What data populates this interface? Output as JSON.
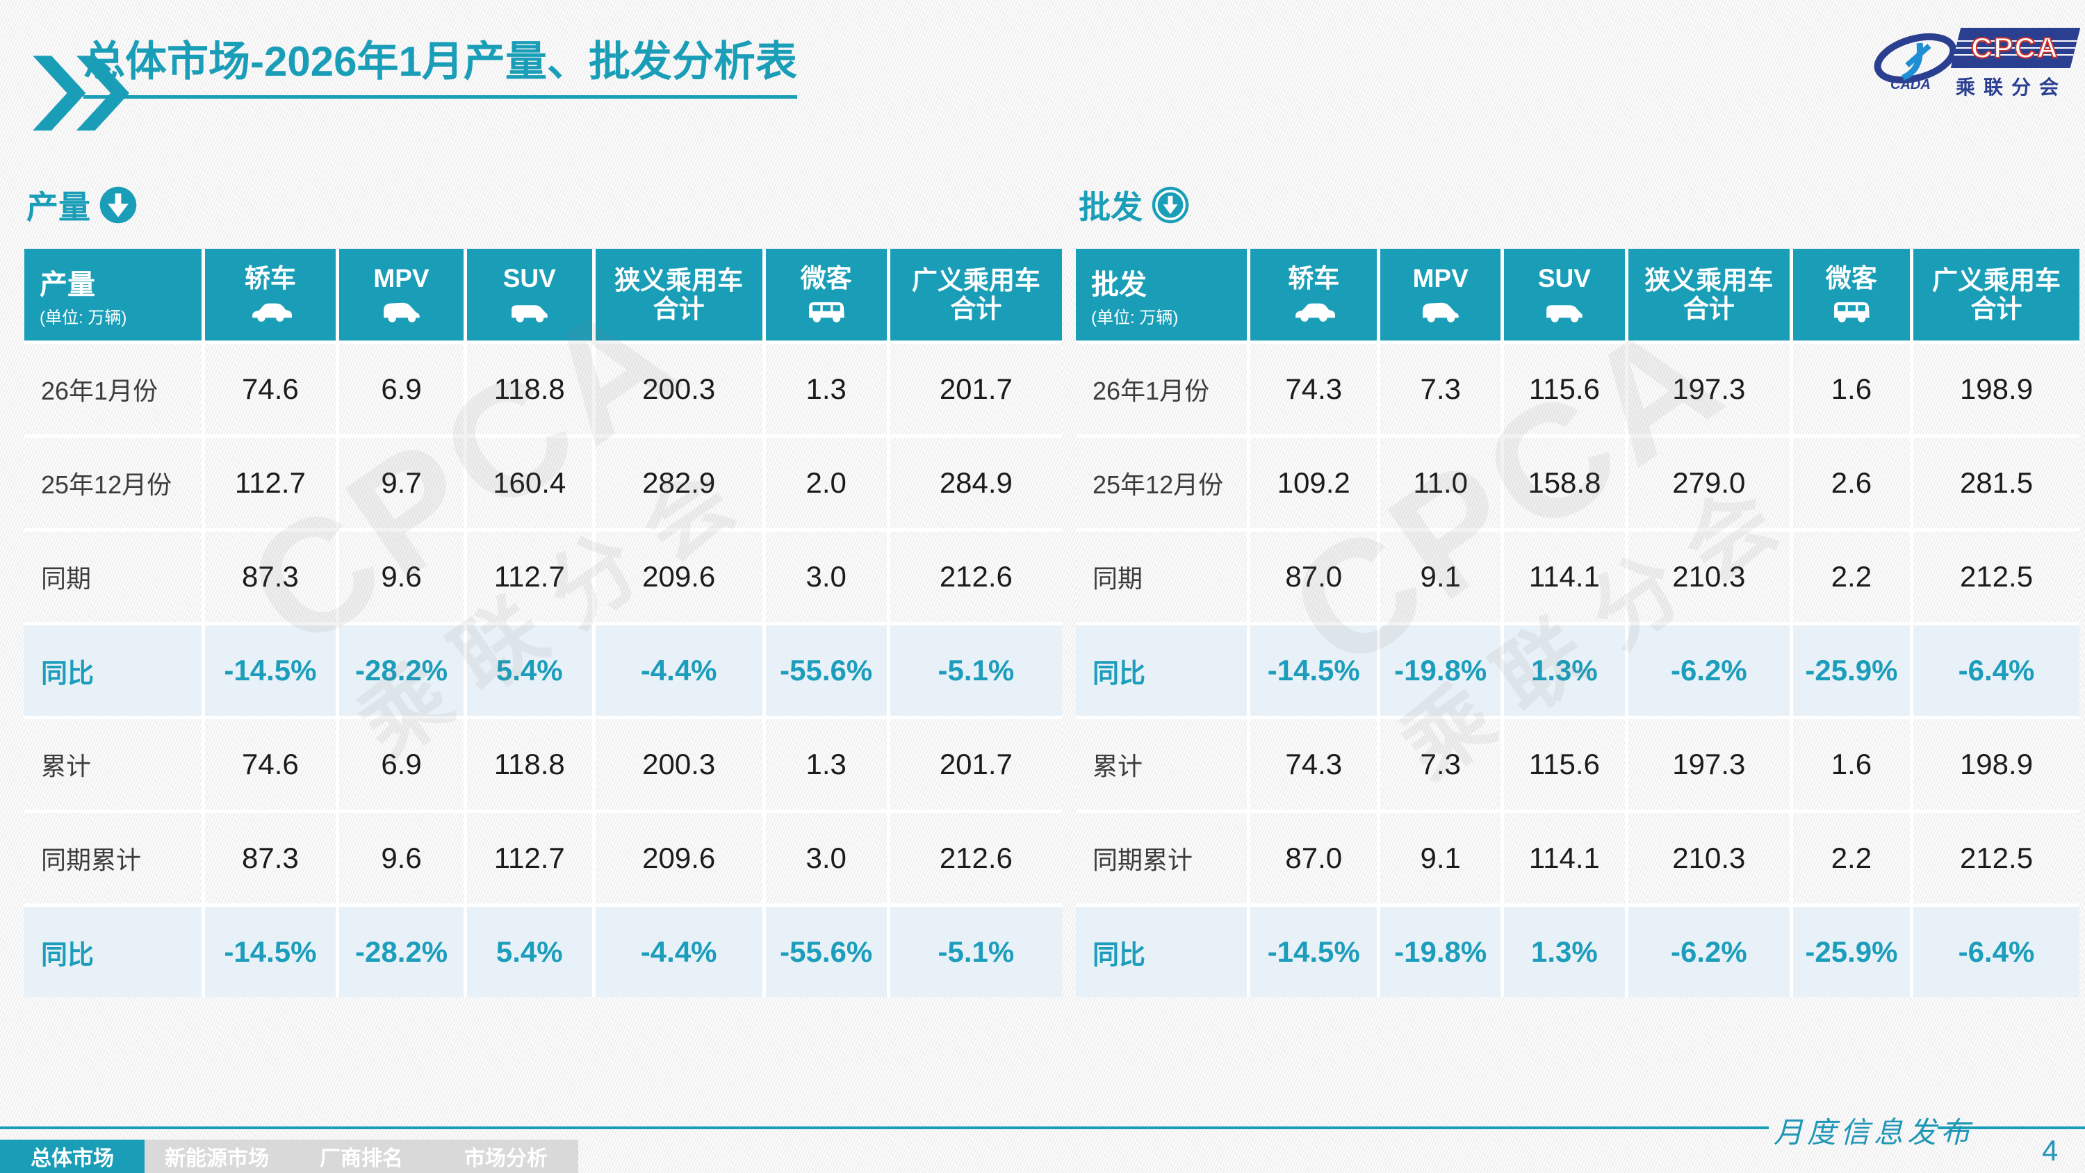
{
  "page": {
    "title": "总体市场-2026年1月产量、批发分析表",
    "page_number": "4",
    "footer_note": "月度信息发布"
  },
  "logo": {
    "cpca": "CPCA",
    "cada": "CADA",
    "subtitle": "乘联分会"
  },
  "colors": {
    "accent": "#1A9EB8",
    "highlight_row_bg": "#E8F1F7",
    "logo_blue": "#2B3F90",
    "logo_red": "#D03028",
    "nav_gray": "#D9D9D9"
  },
  "nav": {
    "tabs": [
      {
        "label": "总体市场",
        "active": true
      },
      {
        "label": "新能源市场",
        "active": false
      },
      {
        "label": "厂商排名",
        "active": false
      },
      {
        "label": "市场分析",
        "active": false
      }
    ]
  },
  "watermark": {
    "main": "CPCA",
    "sub": "乘联分会"
  },
  "tables": {
    "production": {
      "section_title": "产量",
      "corner_label": "产量",
      "unit_label": "(单位: 万辆)",
      "columns": [
        {
          "label": "轿车",
          "icon": "sedan-icon"
        },
        {
          "label": "MPV",
          "icon": "mpv-icon"
        },
        {
          "label": "SUV",
          "icon": "suv-icon"
        },
        {
          "label": "狭义乘用车\n合计"
        },
        {
          "label": "微客",
          "icon": "microvan-icon"
        },
        {
          "label": "广义乘用车\n合计"
        }
      ],
      "rows": [
        {
          "label": "26年1月份",
          "highlight": false,
          "values": [
            "74.6",
            "6.9",
            "118.8",
            "200.3",
            "1.3",
            "201.7"
          ]
        },
        {
          "label": "25年12月份",
          "highlight": false,
          "values": [
            "112.7",
            "9.7",
            "160.4",
            "282.9",
            "2.0",
            "284.9"
          ]
        },
        {
          "label": "同期",
          "highlight": false,
          "values": [
            "87.3",
            "9.6",
            "112.7",
            "209.6",
            "3.0",
            "212.6"
          ]
        },
        {
          "label": "同比",
          "highlight": true,
          "values": [
            "-14.5%",
            "-28.2%",
            "5.4%",
            "-4.4%",
            "-55.6%",
            "-5.1%"
          ]
        },
        {
          "label": "累计",
          "highlight": false,
          "values": [
            "74.6",
            "6.9",
            "118.8",
            "200.3",
            "1.3",
            "201.7"
          ]
        },
        {
          "label": "同期累计",
          "highlight": false,
          "values": [
            "87.3",
            "9.6",
            "112.7",
            "209.6",
            "3.0",
            "212.6"
          ]
        },
        {
          "label": "同比",
          "highlight": true,
          "values": [
            "-14.5%",
            "-28.2%",
            "5.4%",
            "-4.4%",
            "-55.6%",
            "-5.1%"
          ]
        }
      ]
    },
    "wholesale": {
      "section_title": "批发",
      "corner_label": "批发",
      "unit_label": "(单位: 万辆)",
      "columns": [
        {
          "label": "轿车",
          "icon": "sedan-icon"
        },
        {
          "label": "MPV",
          "icon": "mpv-icon"
        },
        {
          "label": "SUV",
          "icon": "suv-icon"
        },
        {
          "label": "狭义乘用车\n合计"
        },
        {
          "label": "微客",
          "icon": "microvan-icon"
        },
        {
          "label": "广义乘用车\n合计"
        }
      ],
      "rows": [
        {
          "label": "26年1月份",
          "highlight": false,
          "values": [
            "74.3",
            "7.3",
            "115.6",
            "197.3",
            "1.6",
            "198.9"
          ]
        },
        {
          "label": "25年12月份",
          "highlight": false,
          "values": [
            "109.2",
            "11.0",
            "158.8",
            "279.0",
            "2.6",
            "281.5"
          ]
        },
        {
          "label": "同期",
          "highlight": false,
          "values": [
            "87.0",
            "9.1",
            "114.1",
            "210.3",
            "2.2",
            "212.5"
          ]
        },
        {
          "label": "同比",
          "highlight": true,
          "values": [
            "-14.5%",
            "-19.8%",
            "1.3%",
            "-6.2%",
            "-25.9%",
            "-6.4%"
          ]
        },
        {
          "label": "累计",
          "highlight": false,
          "values": [
            "74.3",
            "7.3",
            "115.6",
            "197.3",
            "1.6",
            "198.9"
          ]
        },
        {
          "label": "同期累计",
          "highlight": false,
          "values": [
            "87.0",
            "9.1",
            "114.1",
            "210.3",
            "2.2",
            "212.5"
          ]
        },
        {
          "label": "同比",
          "highlight": true,
          "values": [
            "-14.5%",
            "-19.8%",
            "1.3%",
            "-6.2%",
            "-25.9%",
            "-6.4%"
          ]
        }
      ]
    }
  }
}
